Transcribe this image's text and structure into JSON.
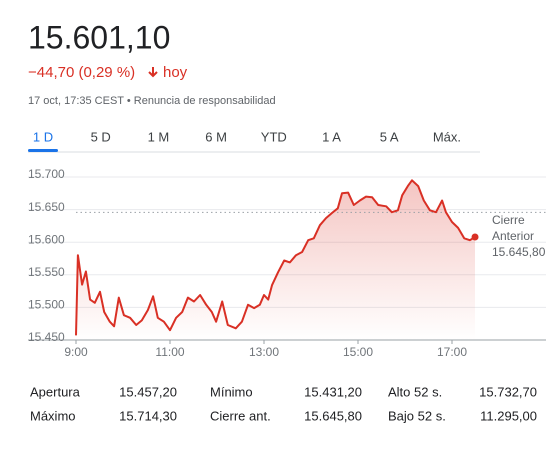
{
  "header": {
    "price": "15.601,10",
    "change": "−44,70 (0,29 %)",
    "period": "hoy",
    "timestamp": "17 oct, 17:35 CEST • Renuncia de responsabilidad"
  },
  "tabs": {
    "items": [
      "1 D",
      "5 D",
      "1 M",
      "6 M",
      "YTD",
      "1 A",
      "5 A",
      "Máx."
    ],
    "selected": 0
  },
  "chart_data": {
    "type": "line",
    "color": "#d93025",
    "x": [
      9.0,
      9.04,
      9.13,
      9.21,
      9.3,
      9.4,
      9.51,
      9.6,
      9.72,
      9.81,
      9.91,
      10.02,
      10.15,
      10.28,
      10.4,
      10.53,
      10.64,
      10.74,
      10.87,
      11.0,
      11.13,
      11.26,
      11.38,
      11.51,
      11.64,
      11.77,
      11.89,
      11.98,
      12.11,
      12.23,
      12.4,
      12.53,
      12.66,
      12.79,
      12.91,
      13.0,
      13.09,
      13.17,
      13.3,
      13.43,
      13.55,
      13.68,
      13.81,
      13.94,
      14.06,
      14.19,
      14.32,
      14.45,
      14.57,
      14.66,
      14.79,
      14.91,
      15.04,
      15.17,
      15.3,
      15.43,
      15.6,
      15.72,
      15.85,
      15.94,
      16.06,
      16.15,
      16.28,
      16.4,
      16.53,
      16.66,
      16.79,
      16.87,
      17.0,
      17.13,
      17.26,
      17.38,
      17.49
    ],
    "values": [
      15457,
      15580,
      15535,
      15555,
      15512,
      15507,
      15524,
      15493,
      15478,
      15471,
      15515,
      15488,
      15484,
      15473,
      15480,
      15496,
      15517,
      15484,
      15478,
      15465,
      15484,
      15493,
      15515,
      15509,
      15519,
      15504,
      15493,
      15478,
      15509,
      15473,
      15468,
      15478,
      15504,
      15499,
      15504,
      15519,
      15512,
      15534,
      15554,
      15572,
      15569,
      15580,
      15585,
      15603,
      15606,
      15626,
      15637,
      15645,
      15652,
      15675,
      15676,
      15657,
      15664,
      15670,
      15669,
      15657,
      15655,
      15646,
      15649,
      15672,
      15686,
      15695,
      15686,
      15664,
      15649,
      15646,
      15664,
      15646,
      15631,
      15622,
      15606,
      15603,
      15608
    ],
    "xlim": [
      9,
      19
    ],
    "xticks": [
      {
        "value": 9,
        "label": "9:00"
      },
      {
        "value": 11,
        "label": "11:00"
      },
      {
        "value": 13,
        "label": "13:00"
      },
      {
        "value": 15,
        "label": "15:00"
      },
      {
        "value": 17,
        "label": "17:00"
      }
    ],
    "ylim": [
      15450,
      15700
    ],
    "yticks": [
      {
        "value": 15450,
        "label": "15.450"
      },
      {
        "value": 15500,
        "label": "15.500"
      },
      {
        "value": 15550,
        "label": "15.550"
      },
      {
        "value": 15600,
        "label": "15.600"
      },
      {
        "value": 15650,
        "label": "15.650"
      },
      {
        "value": 15700,
        "label": "15.700"
      }
    ],
    "grid": true,
    "reference": {
      "value": 15645.8,
      "label": [
        "Cierre",
        "Anterior"
      ],
      "value_label": "15.645,80"
    }
  },
  "stats": {
    "rows": [
      [
        [
          "Apertura",
          "15.457,20"
        ],
        [
          "Mínimo",
          "15.431,20"
        ],
        [
          "Alto 52 s.",
          "15.732,70"
        ]
      ],
      [
        [
          "Máximo",
          "15.714,30"
        ],
        [
          "Cierre ant.",
          "15.645,80"
        ],
        [
          "Bajo 52 s.",
          "11.295,00"
        ]
      ]
    ]
  }
}
